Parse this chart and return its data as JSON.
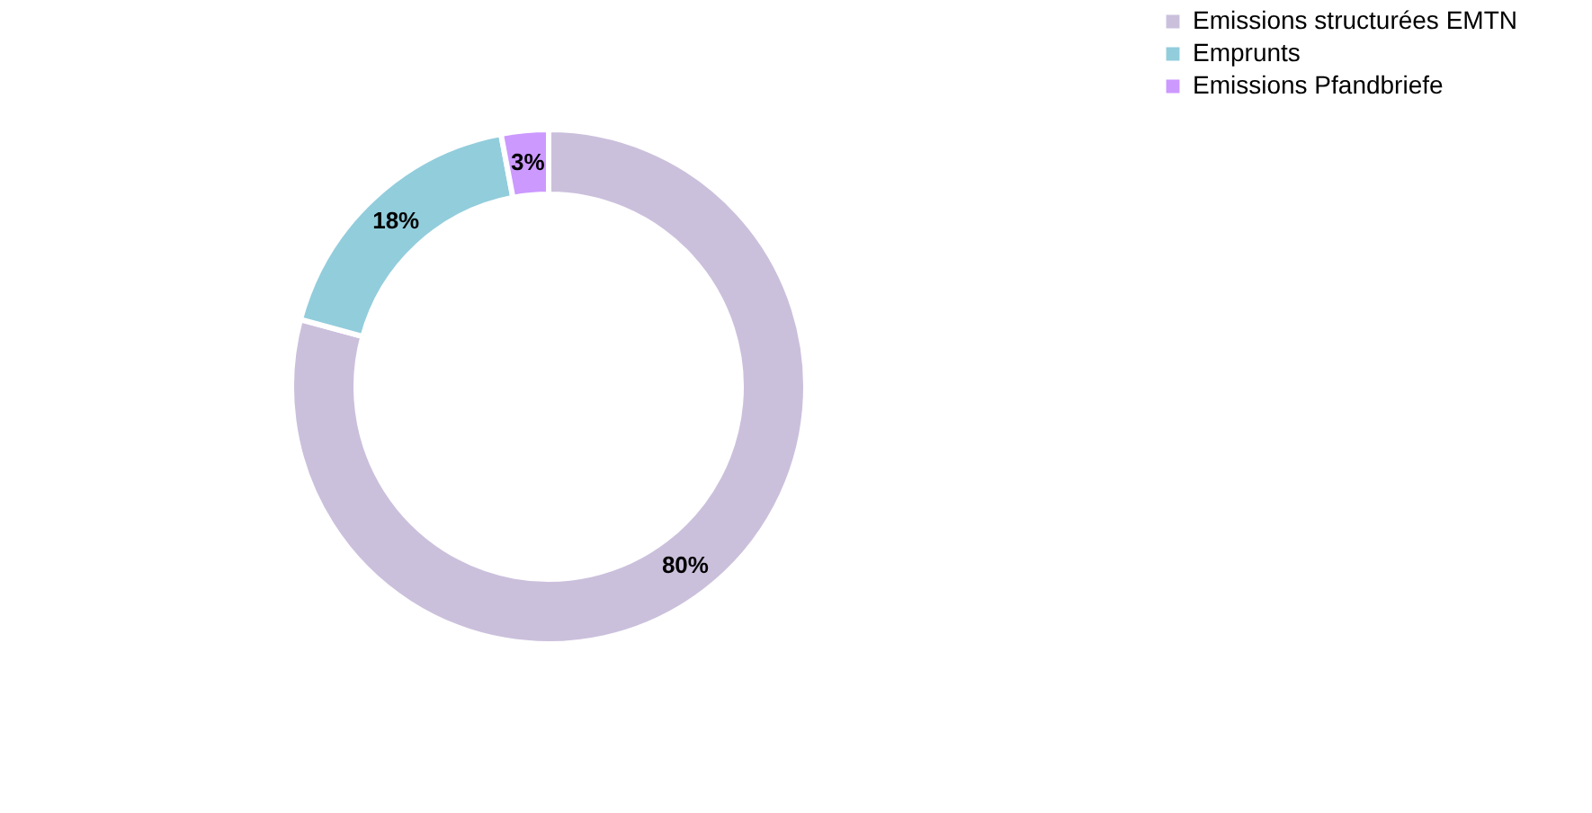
{
  "chart_data": {
    "type": "donut",
    "categories": [
      "Emissions structurées EMTN",
      "Emprunts",
      "Emissions Pfandbriefe"
    ],
    "values": [
      80,
      18,
      3
    ],
    "colors": [
      "#cbc0dc",
      "#92cddc",
      "#cc99ff"
    ],
    "value_labels": [
      "80%",
      "18%",
      "3%"
    ],
    "legend": "right"
  }
}
